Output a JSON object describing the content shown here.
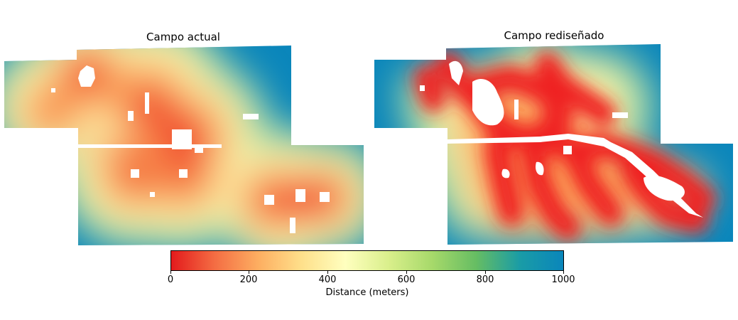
{
  "panels": [
    {
      "title": "Campo actual"
    },
    {
      "title": "Campo rediseñado"
    }
  ],
  "colorbar": {
    "label": "Distance (meters)",
    "min": 0,
    "max": 1000,
    "ticks": [
      "0",
      "200",
      "400",
      "600",
      "800",
      "1000"
    ],
    "colormap": [
      "#e31a1c",
      "#f46d43",
      "#fdae61",
      "#fee08b",
      "#ffffbf",
      "#d9ef8b",
      "#a6d96a",
      "#66bd63",
      "#1a9ca6",
      "#0a86bb"
    ]
  },
  "colors": {
    "near": "#f21c1c",
    "mid": "#fdb863",
    "pale": "#fbf5b0",
    "far": "#0a86bb"
  }
}
